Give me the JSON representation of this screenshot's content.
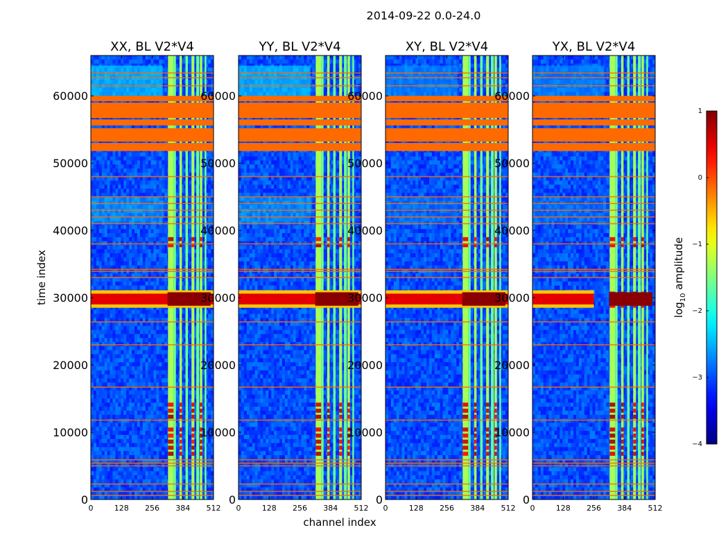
{
  "figure": {
    "suptitle": "2014-09-22 0.0-24.0",
    "xlabel": "channel index",
    "ylabel": "time index"
  },
  "colorbar": {
    "label_main": "log",
    "label_sub": "10",
    "label_tail": " amplitude",
    "ticks": [
      {
        "value": 1,
        "label": "1"
      },
      {
        "value": 0,
        "label": "0"
      },
      {
        "value": -1,
        "label": "−1"
      },
      {
        "value": -2,
        "label": "−2"
      },
      {
        "value": -3,
        "label": "−3"
      },
      {
        "value": -4,
        "label": "−4"
      }
    ],
    "vmin": -4,
    "vmax": 1,
    "cmap": "jet"
  },
  "colors": {
    "axis": "#000000",
    "orange_band": "#ff6a00",
    "background": "#ffffff"
  },
  "chart_data": [
    {
      "type": "heatmap",
      "title": "XX, BL V2*V4",
      "xlabel": "channel index",
      "ylabel": "time index",
      "xlim": [
        0,
        512
      ],
      "ylim": [
        0,
        66000
      ],
      "xticks": [
        0,
        128,
        256,
        384,
        512
      ],
      "yticks": [
        0,
        10000,
        20000,
        30000,
        40000,
        50000,
        60000
      ],
      "pol": "XX"
    },
    {
      "type": "heatmap",
      "title": "YY, BL V2*V4",
      "xlabel": "channel index",
      "ylabel": "time index",
      "xlim": [
        0,
        512
      ],
      "ylim": [
        0,
        66000
      ],
      "xticks": [
        0,
        128,
        256,
        384,
        512
      ],
      "yticks": [
        0,
        10000,
        20000,
        30000,
        40000,
        50000,
        60000
      ],
      "pol": "YY"
    },
    {
      "type": "heatmap",
      "title": "XY, BL V2*V4",
      "xlabel": "channel index",
      "ylabel": "time index",
      "xlim": [
        0,
        512
      ],
      "ylim": [
        0,
        66000
      ],
      "xticks": [
        0,
        128,
        256,
        384,
        512
      ],
      "yticks": [
        0,
        10000,
        20000,
        30000,
        40000,
        50000,
        60000
      ],
      "pol": "XY"
    },
    {
      "type": "heatmap",
      "title": "YX, BL V2*V4",
      "xlabel": "channel index",
      "ylabel": "time index",
      "xlim": [
        0,
        512
      ],
      "ylim": [
        0,
        66000
      ],
      "xticks": [
        0,
        128,
        256,
        384,
        512
      ],
      "yticks": [
        0,
        10000,
        20000,
        30000,
        40000,
        50000,
        60000
      ],
      "pol": "YX"
    }
  ],
  "features": {
    "flagged_bands": [
      [
        51800,
        53000
      ],
      [
        53200,
        55200
      ],
      [
        55600,
        56500
      ],
      [
        56700,
        59000
      ],
      [
        59200,
        60000
      ]
    ],
    "thin_lines": [
      600,
      1200,
      2300,
      5000,
      5400,
      5900,
      11800,
      16700,
      23000,
      26400,
      33000,
      33900,
      34200,
      38000,
      41000,
      42000,
      43000,
      44000,
      45000,
      48000,
      61500,
      62700,
      63400
    ],
    "bright_channel_ranges": [
      [
        322,
        345
      ],
      [
        345,
        355
      ],
      [
        370,
        380
      ],
      [
        395,
        405
      ],
      [
        420,
        432
      ],
      [
        440,
        452
      ],
      [
        455,
        465
      ],
      [
        475,
        482
      ]
    ],
    "bright_time_range": [
      29000,
      30600
    ],
    "bright_blobs_time": [
      [
        6500,
        10500
      ],
      [
        12000,
        14000
      ],
      [
        28500,
        31000
      ],
      [
        37500,
        39000
      ]
    ]
  }
}
